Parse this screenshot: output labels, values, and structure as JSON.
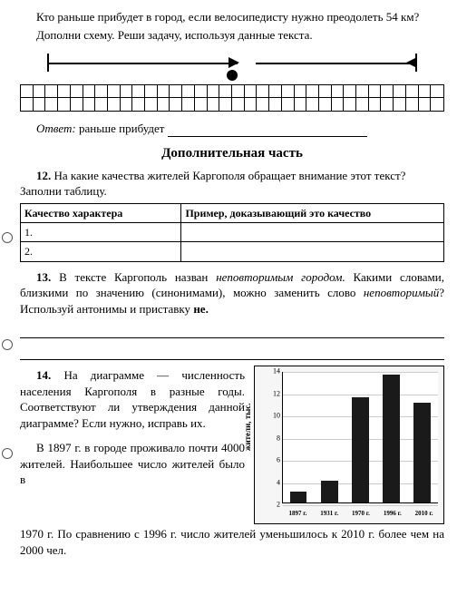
{
  "intro": {
    "line1": "Кто раньше прибудет в город, если велосипедисту нужно преодолеть 54 км?",
    "line2": "Дополни схему. Реши задачу, используя данные текста."
  },
  "answer": {
    "label_italic": "Ответ:",
    "text": " раньше прибудет "
  },
  "section_title": "Дополнительная часть",
  "task12": {
    "num": "12.",
    "text": " На какие качества жителей Каргополя обращает внимание этот текст? Заполни таблицу.",
    "col1": "Качество характера",
    "col2": "Пример, доказывающий это качество",
    "r1": "1.",
    "r2": "2."
  },
  "task13": {
    "num": "13.",
    "t1": " В тексте Каргополь назван ",
    "em1": "неповторимым городом.",
    "t2": " Какими словами, близкими по значению (синонимами), можно заменить слово ",
    "em2": "неповторимый",
    "t3": "? Используй антонимы и приставку ",
    "bold_ne": "не."
  },
  "task14": {
    "num": "14.",
    "p1": " На диаграмме — численность населения Каргополя в разные годы. Соответствуют ли утверждения данной диаграмме? Если нужно, исправь их.",
    "p2": "В 1897 г. в городе проживало почти 4000 жителей. Наибольшее число жителей было в",
    "p3": "1970 г. По сравнению с 1996 г. число жителей уменьшилось к 2010 г. более чем на 2000 чел."
  },
  "chart": {
    "type": "bar",
    "ylabel": "жители, тыс.",
    "ylim": [
      2,
      14
    ],
    "yticks": [
      2,
      4,
      6,
      8,
      10,
      12,
      14
    ],
    "background_color": "#f6f6f6",
    "plot_bg": "#ffffff",
    "grid_color": "#cccccc",
    "bar_color": "#1a1a1a",
    "categories": [
      "1897 г.",
      "1931 г.",
      "1970 г.",
      "1996 г.",
      "2010 г."
    ],
    "values": [
      3,
      4,
      11.5,
      13.5,
      11
    ],
    "bar_width_pct": 11,
    "bar_positions_pct": [
      10,
      30,
      50,
      70,
      90
    ]
  }
}
